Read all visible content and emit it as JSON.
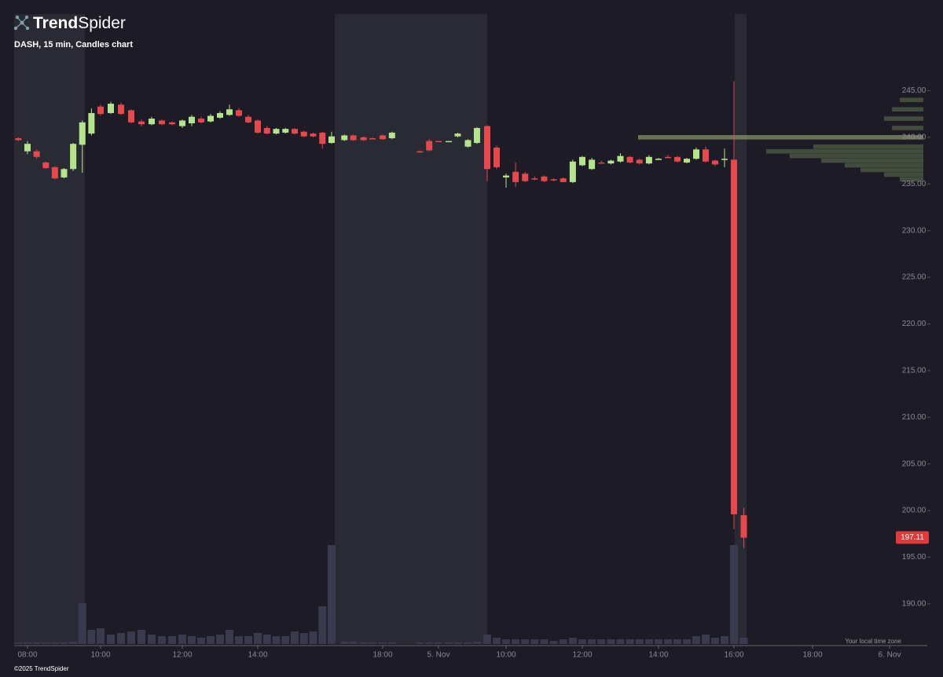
{
  "brand": {
    "bold": "Trend",
    "light": "Spider"
  },
  "footer": {
    "copyright": "©2025 TrendSpider",
    "timezone": "Your local time zone"
  },
  "chart_data": {
    "type": "candlestick",
    "title": "DASH, 15 min, Candles chart",
    "up_color": "#b4e58a",
    "down_color": "#e6484c",
    "volume_color": "#3a3a4e",
    "last_price": 197.11,
    "last_price_color": "#e03a3a",
    "ylim": [
      185.7,
      253.2
    ],
    "yticks": [
      {
        "value": 190,
        "label": "190.00"
      },
      {
        "value": 195,
        "label": "195.00"
      },
      {
        "value": 200,
        "label": "200.00"
      },
      {
        "value": 205,
        "label": "205.00"
      },
      {
        "value": 210,
        "label": "210.00"
      },
      {
        "value": 215,
        "label": "215.00"
      },
      {
        "value": 220,
        "label": "220.00"
      },
      {
        "value": 225,
        "label": "225.00"
      },
      {
        "value": 230,
        "label": "230.00"
      },
      {
        "value": 235,
        "label": "235.00"
      },
      {
        "value": 240,
        "label": "240.00"
      },
      {
        "value": 245,
        "label": "245.00"
      }
    ],
    "xlim": [
      7.6,
      48.9
    ],
    "xticks": [
      {
        "value": 8,
        "label": "08:00"
      },
      {
        "value": 10,
        "label": "10:00"
      },
      {
        "value": 12,
        "label": "12:00"
      },
      {
        "value": 14,
        "label": "14:00"
      },
      {
        "value": 18,
        "label": "18:00"
      },
      {
        "value": 24,
        "label": "5. Nov"
      },
      {
        "value": 34,
        "label": "10:00"
      },
      {
        "value": 36,
        "label": "12:00"
      },
      {
        "value": 38,
        "label": "14:00"
      },
      {
        "value": 40,
        "label": "16:00"
      },
      {
        "value": 42,
        "label": "18:00"
      },
      {
        "value": 48,
        "label": "6. Nov"
      }
    ],
    "x": [
      7.75,
      8,
      8.25,
      8.5,
      8.75,
      9,
      9.25,
      9.5,
      9.75,
      10,
      10.25,
      10.5,
      10.75,
      11,
      11.25,
      11.5,
      11.75,
      12,
      12.25,
      12.5,
      12.75,
      13,
      13.25,
      13.5,
      13.75,
      14,
      14.25,
      14.5,
      14.75,
      15,
      15.25,
      15.5,
      15.75,
      16,
      16.5,
      16.85,
      17.25,
      17.6,
      18,
      19,
      22,
      23,
      24,
      26,
      27.75,
      29.75,
      31.5,
      33.5,
      33.75,
      34,
      34.25,
      34.5,
      34.75,
      35,
      35.25,
      35.5,
      35.75,
      36,
      36.25,
      36.5,
      36.75,
      37,
      37.25,
      37.5,
      37.75,
      38,
      38.25,
      38.5,
      38.75,
      39,
      39.25,
      39.5,
      39.75,
      40,
      40.25
    ],
    "open": [
      239.9,
      238.5,
      238.5,
      237.3,
      236.8,
      235.7,
      236.6,
      239.2,
      240.4,
      243.3,
      242.6,
      243.5,
      242.9,
      241.7,
      241.4,
      241.8,
      241.6,
      241.2,
      241.5,
      242.0,
      241.7,
      242.1,
      242.4,
      242.9,
      242.2,
      241.8,
      241.0,
      240.4,
      240.5,
      240.9,
      240.6,
      240.4,
      240.5,
      239.4,
      239.7,
      240.2,
      240.0,
      239.9,
      240.2,
      239.9,
      238.5,
      239.6,
      239.6,
      239.5,
      240.1,
      239.0,
      239.4,
      241.2,
      238.9,
      235.7,
      236.3,
      236.1,
      235.6,
      235.8,
      235.5,
      235.6,
      235.2,
      237.0,
      236.6,
      237.3,
      237.2,
      237.4,
      237.9,
      237.6,
      237.2,
      237.7,
      237.9,
      237.9,
      237.3,
      237.7,
      238.7,
      237.5,
      237.6,
      237.6,
      199.5
    ],
    "high": [
      240.0,
      239.6,
      238.7,
      237.4,
      236.9,
      236.7,
      239.4,
      241.8,
      243.1,
      243.5,
      243.8,
      243.7,
      243.0,
      241.9,
      242.2,
      241.9,
      241.7,
      241.9,
      242.4,
      242.2,
      242.5,
      242.8,
      243.5,
      243.1,
      242.4,
      241.9,
      241.2,
      241.0,
      241.0,
      241.0,
      240.7,
      240.5,
      240.6,
      240.6,
      240.3,
      240.3,
      240.1,
      240.0,
      240.3,
      240.6,
      238.6,
      239.8,
      239.6,
      239.6,
      240.5,
      239.8,
      241.1,
      241.3,
      239.1,
      236.1,
      237.3,
      236.3,
      235.8,
      235.9,
      235.6,
      235.7,
      237.6,
      238.0,
      237.8,
      237.5,
      237.6,
      238.3,
      238.0,
      237.7,
      238.1,
      237.8,
      238.1,
      238.0,
      237.8,
      238.9,
      239.0,
      237.6,
      238.8,
      246.0,
      200.3
    ],
    "low": [
      239.6,
      238.2,
      237.7,
      236.6,
      235.5,
      235.6,
      236.4,
      236.2,
      240.2,
      242.3,
      242.5,
      242.4,
      241.5,
      241.2,
      241.3,
      241.3,
      241.3,
      241.0,
      241.2,
      241.5,
      241.6,
      242.0,
      242.3,
      242.2,
      241.5,
      240.4,
      240.3,
      240.3,
      240.4,
      240.3,
      240.0,
      240.0,
      238.8,
      239.3,
      239.6,
      239.6,
      239.6,
      239.8,
      239.7,
      239.8,
      238.4,
      238.5,
      239.5,
      239.5,
      240.0,
      238.9,
      239.3,
      235.3,
      236.6,
      234.6,
      234.7,
      235.2,
      235.4,
      235.2,
      235.3,
      235.2,
      235.1,
      236.9,
      236.5,
      237.2,
      237.1,
      237.3,
      237.2,
      237.1,
      237.1,
      237.6,
      237.8,
      237.3,
      237.2,
      237.6,
      237.3,
      236.9,
      236.8,
      198.0,
      196.0
    ],
    "close": [
      239.7,
      239.3,
      237.9,
      236.7,
      235.6,
      236.6,
      239.3,
      241.6,
      242.6,
      242.5,
      243.6,
      242.5,
      241.6,
      241.4,
      242.0,
      241.4,
      241.4,
      241.8,
      242.2,
      241.6,
      242.3,
      242.6,
      243.0,
      242.3,
      241.6,
      240.5,
      240.4,
      240.9,
      240.9,
      240.4,
      240.1,
      240.1,
      239.3,
      240.1,
      240.2,
      239.7,
      239.7,
      239.8,
      239.8,
      240.5,
      238.4,
      238.6,
      239.5,
      239.6,
      240.4,
      239.7,
      241.0,
      236.6,
      236.8,
      235.9,
      235.2,
      235.3,
      235.5,
      235.3,
      235.4,
      235.2,
      237.4,
      237.9,
      237.6,
      237.2,
      237.5,
      238.0,
      237.3,
      237.2,
      237.9,
      237.7,
      237.8,
      237.4,
      237.7,
      238.7,
      237.4,
      237.1,
      237.7,
      199.6,
      197.1
    ],
    "volume": [
      2,
      2,
      2,
      2,
      2,
      2,
      3,
      52,
      18,
      20,
      12,
      14,
      16,
      18,
      12,
      10,
      10,
      12,
      10,
      8,
      10,
      12,
      18,
      10,
      10,
      14,
      12,
      10,
      10,
      16,
      14,
      16,
      48,
      126,
      3,
      3,
      2,
      2,
      2,
      2,
      2,
      2,
      2,
      2,
      2,
      2,
      3,
      12,
      8,
      6,
      6,
      6,
      6,
      6,
      4,
      6,
      8,
      6,
      6,
      6,
      6,
      6,
      6,
      6,
      6,
      6,
      6,
      6,
      6,
      10,
      12,
      8,
      10,
      126,
      8
    ],
    "volume_profile": {
      "color": "#4d5a45",
      "poc_color": "#7d8a62",
      "levels": [
        244,
        243,
        242,
        241,
        240,
        239,
        238.5,
        238,
        237.5,
        237,
        236.5,
        236,
        235.5
      ],
      "volumes": [
        30,
        40,
        50,
        40,
        363,
        140,
        200,
        170,
        130,
        100,
        80,
        50,
        30
      ]
    }
  }
}
